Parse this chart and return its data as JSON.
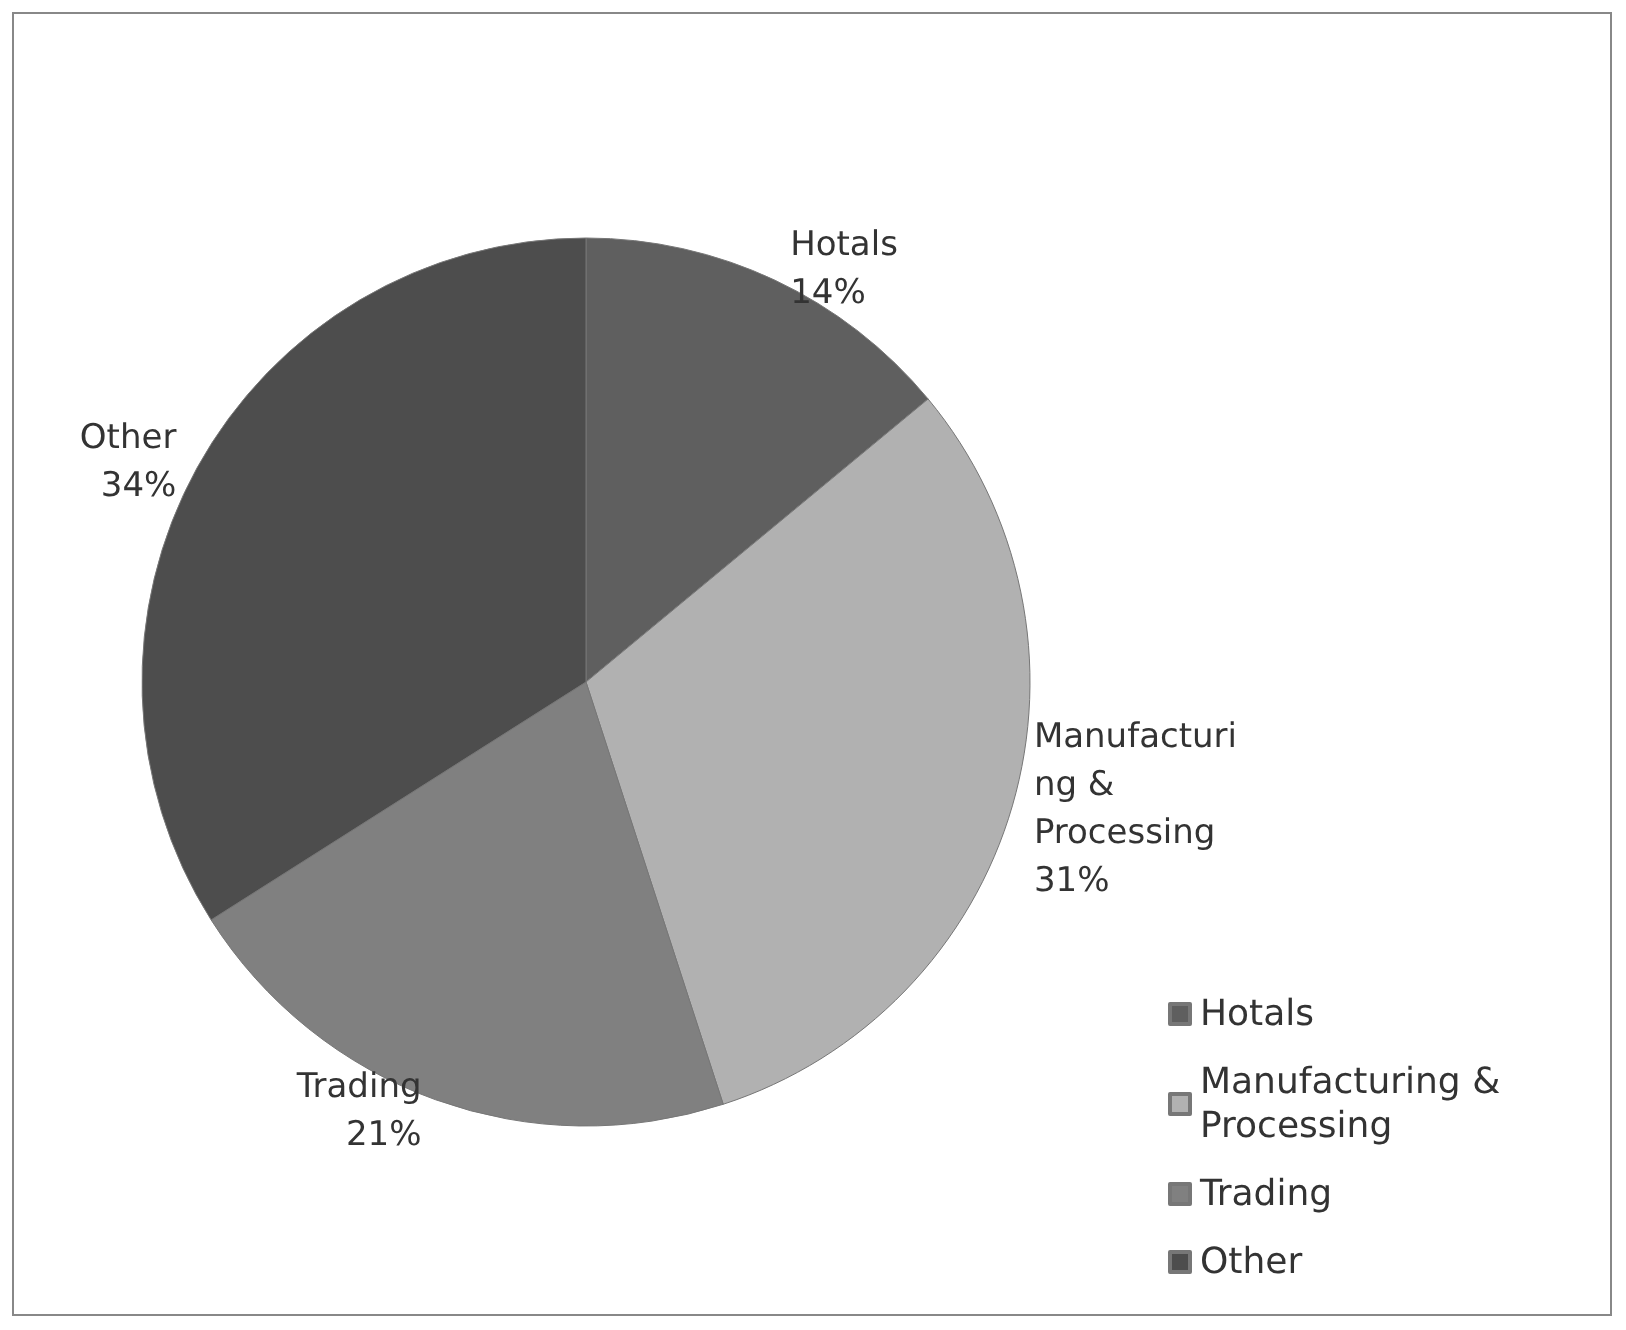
{
  "chart_data": {
    "type": "pie",
    "categories": [
      "Hotals",
      "Manufacturing & Processing",
      "Trading",
      "Other"
    ],
    "values": [
      14,
      31,
      21,
      34
    ],
    "colors": [
      "#5f5f5f",
      "#b1b1b1",
      "#808080",
      "#4d4d4d"
    ],
    "value_labels": [
      "14%",
      "31%",
      "21%",
      "34%"
    ],
    "legend": "bottom right"
  }
}
